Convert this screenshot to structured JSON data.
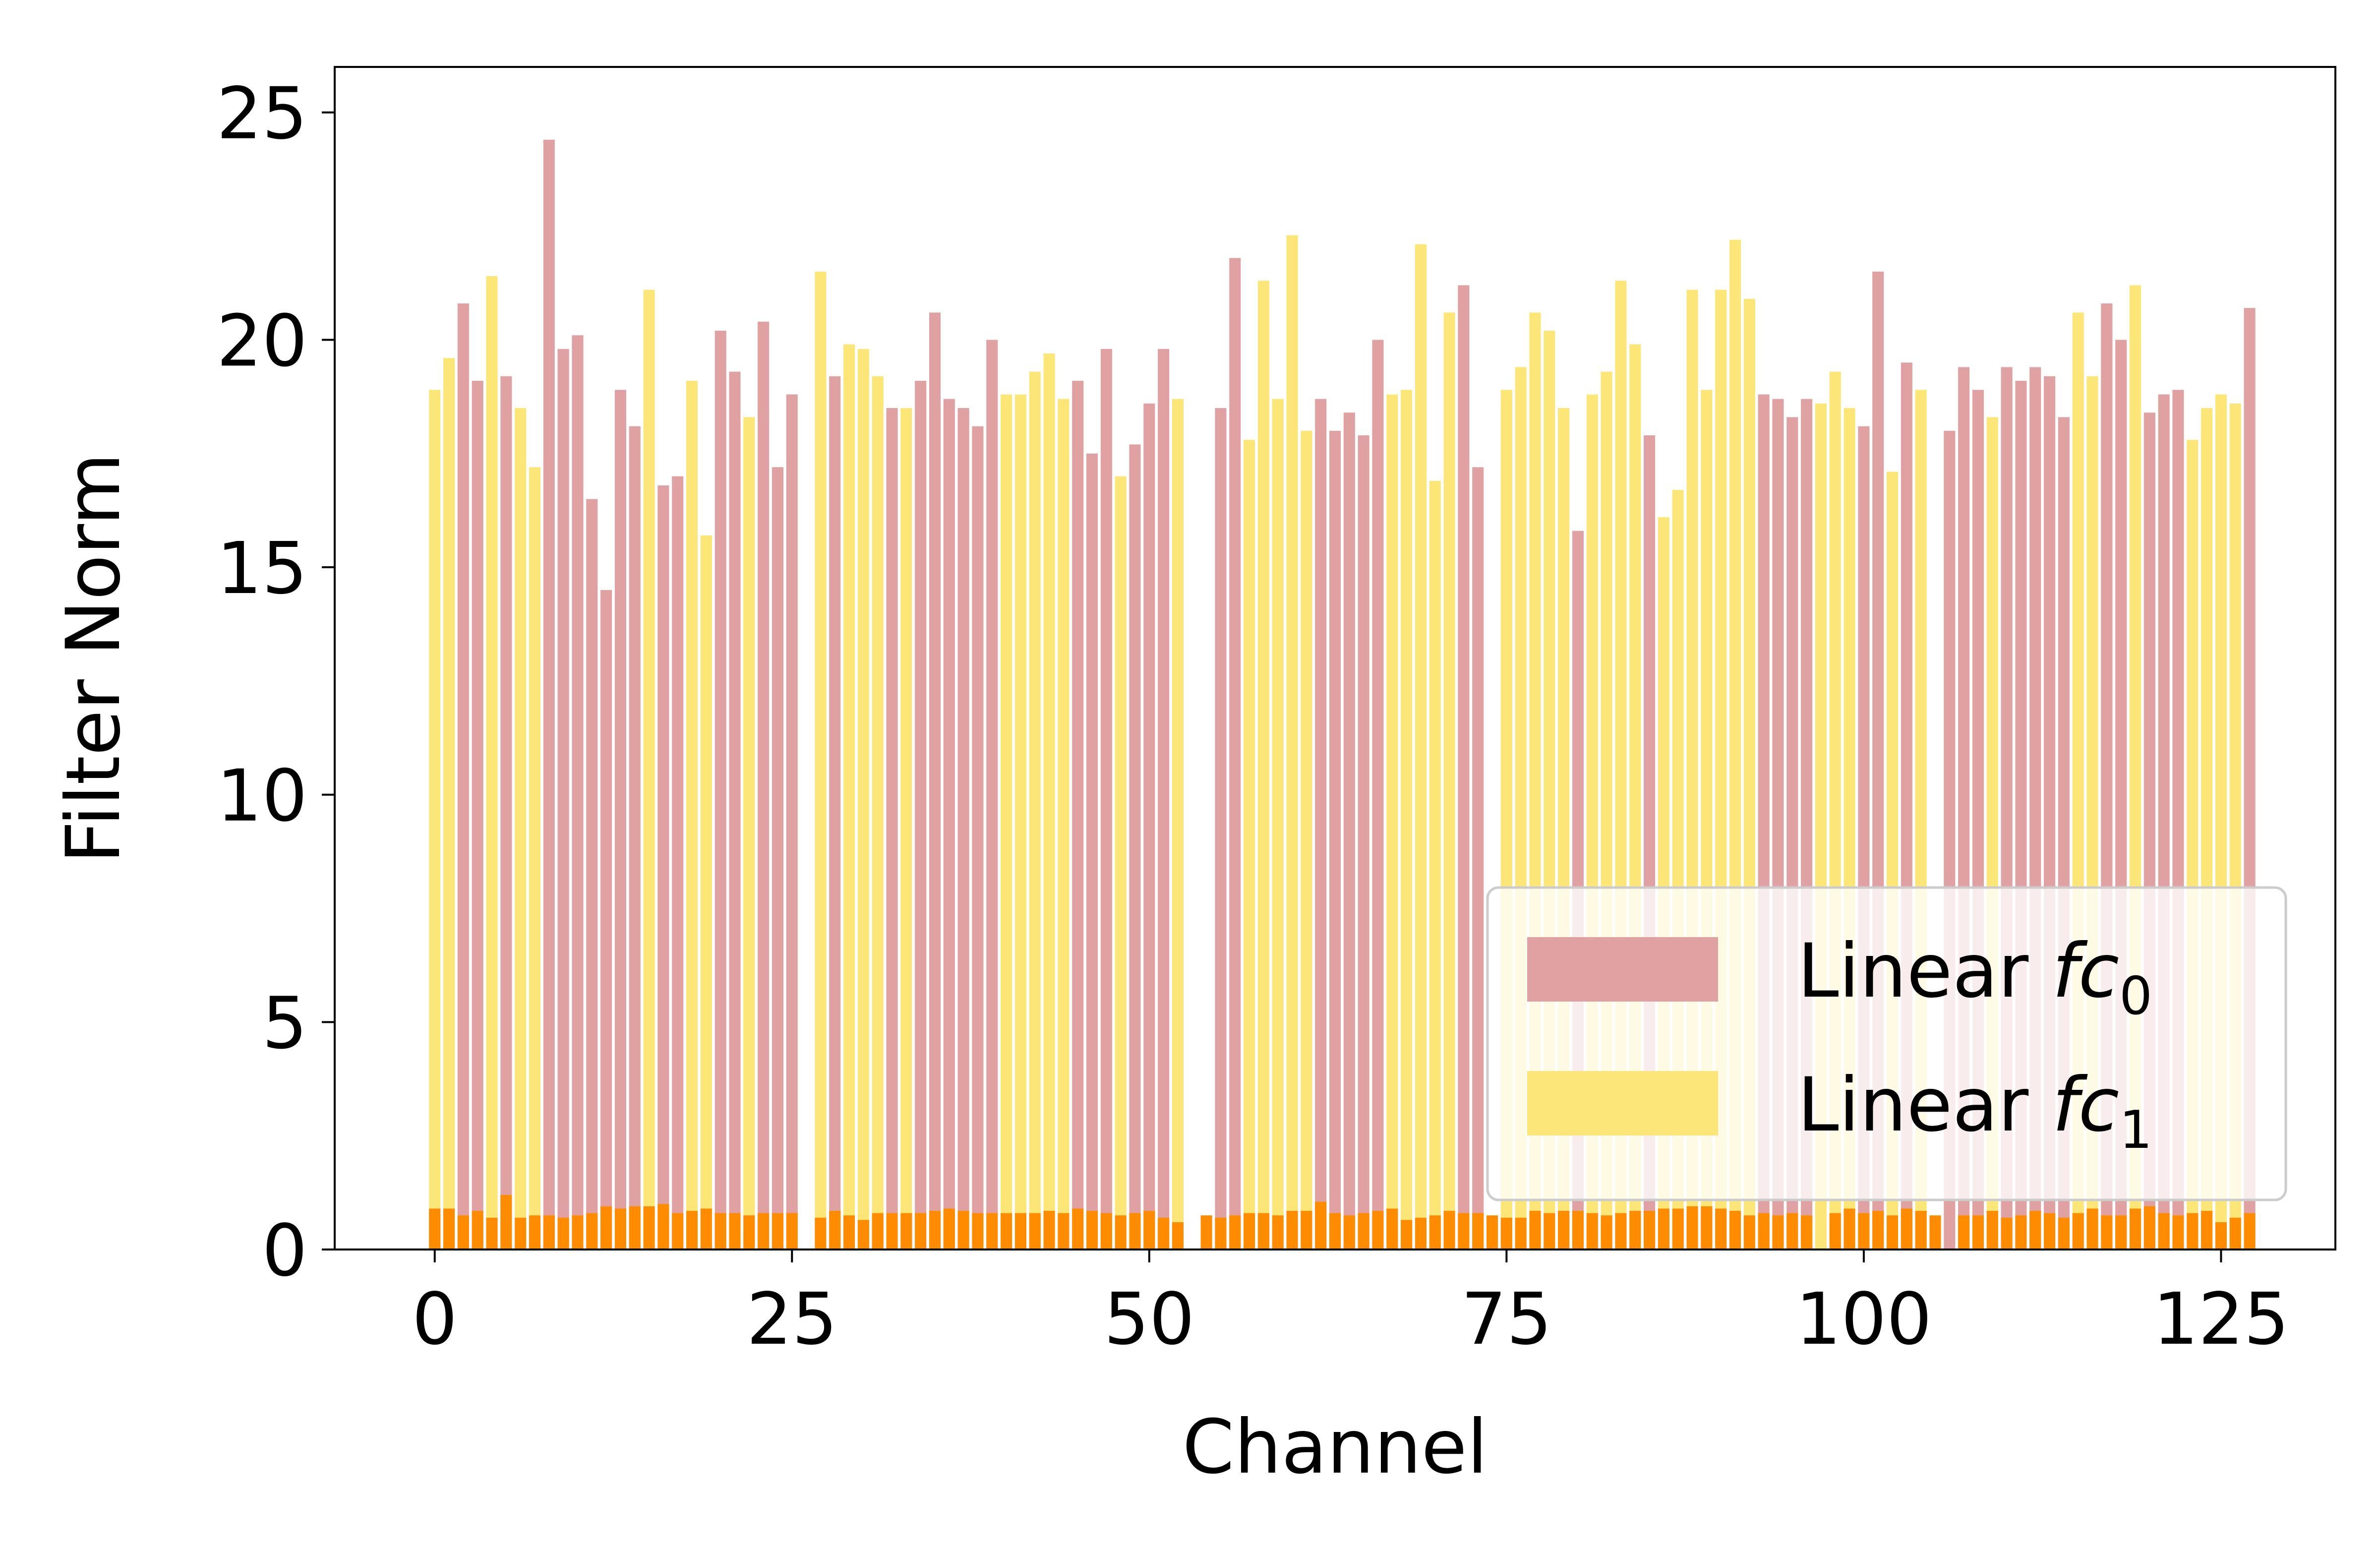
{
  "chart_data": {
    "type": "bar",
    "xlabel": "Channel",
    "ylabel": "Filter Norm",
    "xlim": [
      -7,
      133
    ],
    "ylim": [
      0,
      26
    ],
    "xticks": [
      0,
      25,
      50,
      75,
      100,
      125
    ],
    "yticks": [
      0,
      5,
      10,
      15,
      20,
      25
    ],
    "grid": false,
    "legend_position": "lower-right",
    "series": [
      {
        "name": "Linear fc",
        "name_subscript": "0",
        "color": "#dfa1a1",
        "x": [
          2,
          3,
          5,
          8,
          9,
          10,
          11,
          12,
          13,
          14,
          16,
          17,
          20,
          21,
          23,
          24,
          25,
          28,
          32,
          34,
          35,
          36,
          37,
          38,
          39,
          45,
          46,
          47,
          49,
          50,
          51,
          55,
          56,
          62,
          63,
          64,
          65,
          66,
          72,
          73,
          80,
          85,
          93,
          94,
          95,
          96,
          100,
          101,
          103,
          106,
          107,
          108,
          110,
          111,
          112,
          113,
          114,
          117,
          118,
          120,
          121,
          122,
          127
        ],
        "values": [
          20.8,
          19.1,
          19.2,
          24.4,
          19.8,
          20.1,
          16.5,
          14.5,
          18.9,
          18.1,
          16.8,
          17.0,
          20.2,
          19.3,
          20.4,
          17.2,
          18.8,
          19.2,
          18.5,
          19.1,
          20.6,
          18.7,
          18.5,
          18.1,
          20.0,
          19.1,
          17.5,
          19.8,
          17.7,
          18.6,
          19.8,
          18.5,
          21.8,
          18.7,
          18.0,
          18.4,
          17.9,
          20.0,
          21.2,
          17.2,
          15.8,
          17.9,
          18.8,
          18.7,
          18.3,
          18.7,
          18.1,
          21.5,
          19.5,
          18.0,
          19.4,
          18.9,
          19.4,
          19.1,
          19.4,
          19.2,
          18.3,
          20.8,
          20.0,
          18.4,
          18.8,
          18.9,
          20.7
        ]
      },
      {
        "name": "Linear fc",
        "name_subscript": "1",
        "color": "#fde678",
        "x": [
          0,
          1,
          4,
          6,
          7,
          15,
          18,
          19,
          22,
          27,
          29,
          30,
          31,
          33,
          40,
          41,
          42,
          43,
          44,
          48,
          52,
          57,
          58,
          59,
          60,
          61,
          67,
          68,
          69,
          70,
          71,
          75,
          76,
          77,
          78,
          79,
          81,
          82,
          83,
          84,
          86,
          87,
          88,
          89,
          90,
          91,
          92,
          97,
          98,
          99,
          102,
          104,
          109,
          115,
          116,
          119,
          123,
          124,
          125,
          126
        ],
        "values": [
          18.9,
          19.6,
          21.4,
          18.5,
          17.2,
          21.1,
          19.1,
          15.7,
          18.3,
          21.5,
          19.9,
          19.8,
          19.2,
          18.5,
          18.8,
          18.8,
          19.3,
          19.7,
          18.7,
          17.0,
          18.7,
          17.8,
          21.3,
          18.7,
          22.3,
          18.0,
          18.8,
          18.9,
          22.1,
          16.9,
          20.6,
          18.9,
          19.4,
          20.6,
          20.2,
          18.5,
          18.8,
          19.3,
          21.3,
          19.9,
          16.1,
          16.7,
          21.1,
          18.9,
          21.1,
          22.2,
          20.9,
          18.6,
          19.3,
          18.5,
          17.1,
          18.9,
          18.3,
          20.6,
          19.2,
          21.2,
          17.8,
          18.5,
          18.8,
          18.6
        ]
      },
      {
        "name": "",
        "color": "#ff8c00",
        "values": [
          0.9,
          0.9,
          0.75,
          0.85,
          0.7,
          1.2,
          0.7,
          0.75,
          0.75,
          0.7,
          0.75,
          0.8,
          0.95,
          0.9,
          0.95,
          0.95,
          1.0,
          0.8,
          0.85,
          0.9,
          0.8,
          0.8,
          0.75,
          0.8,
          0.8,
          0.8,
          0,
          0.7,
          0.85,
          0.75,
          0.65,
          0.8,
          0.8,
          0.8,
          0.8,
          0.85,
          0.9,
          0.85,
          0.8,
          0.8,
          0.8,
          0.8,
          0.8,
          0.85,
          0.8,
          0.9,
          0.85,
          0.8,
          0.75,
          0.8,
          0.85,
          0.7,
          0.6,
          0,
          0.75,
          0.7,
          0.75,
          0.8,
          0.8,
          0.75,
          0.85,
          0.85,
          1.05,
          0.8,
          0.75,
          0.8,
          0.85,
          0.9,
          0.65,
          0.7,
          0.75,
          0.85,
          0.8,
          0.8,
          0.75,
          0.7,
          0.7,
          0.85,
          0.8,
          0.85,
          0.85,
          0.8,
          0.75,
          0.8,
          0.85,
          0.85,
          0.9,
          0.9,
          0.95,
          0.95,
          0.9,
          0.85,
          0.75,
          0.8,
          0.75,
          0.8,
          0.75,
          0,
          0.8,
          0.9,
          0.8,
          0.85,
          0.75,
          0.9,
          0.85,
          0.75,
          0,
          0.75,
          0.75,
          0.85,
          0.7,
          0.75,
          0.85,
          0.8,
          0.7,
          0.8,
          0.9,
          0.75,
          0.75,
          0.9,
          0.95,
          0.8,
          0.75,
          0.8,
          0.85,
          0.6,
          0.7,
          0.8
        ]
      }
    ]
  }
}
